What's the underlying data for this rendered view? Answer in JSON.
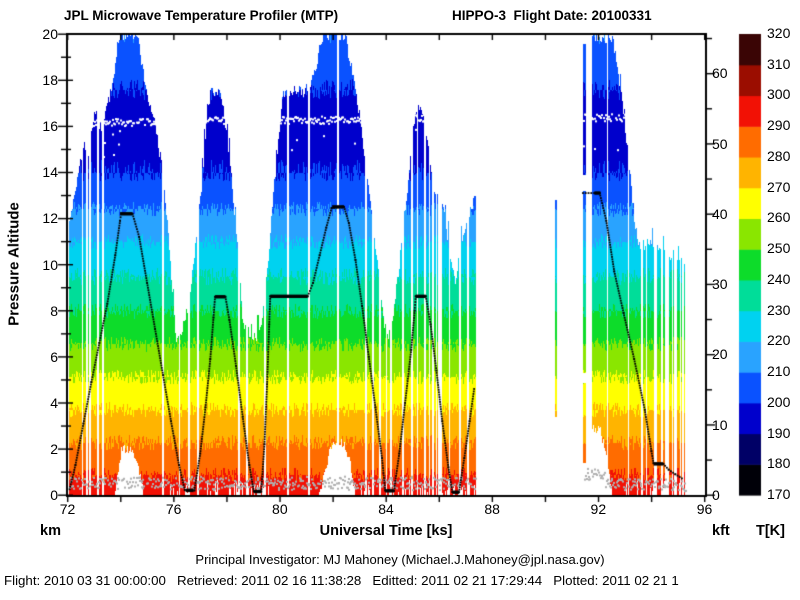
{
  "footer": {
    "line1": "Principal Investigator: MJ Mahoney (Michael.J.Mahoney@jpl.nasa.gov)",
    "line2": "Flight: 2010 03 31 00:00:00   Retrieved: 2011 02 16 11:38:28   Editted: 2011 02 21 17:29:44   Plotted: 2011 02 21 1"
  },
  "chart_data": {
    "type": "heatmap",
    "title": "JPL Microwave Temperature Profiler (MTP)",
    "title_right": "HIPPO-3  Flight Date: 20100331",
    "title_color": "#000080",
    "x_axis": {
      "label": "Universal Time [ks]",
      "range": [
        72,
        96
      ],
      "tick_labels": [
        72,
        76,
        80,
        84,
        88,
        92,
        96
      ],
      "minor_tick_step": 2
    },
    "y_axis_left": {
      "label": "Pressure Altitude",
      "unit": "km",
      "range": [
        0,
        20
      ],
      "labeled_tick_step": 2,
      "minor_tick_step": 1
    },
    "y_axis_right": {
      "unit": "kft",
      "tick_labels": [
        0,
        10,
        20,
        30,
        40,
        50,
        60
      ],
      "minor_tick_step": 5,
      "km_per_kft": 0.3048
    },
    "colorbar": {
      "unit": "T[K]",
      "min": 170,
      "max": 320,
      "label_step": 10,
      "band_colors": [
        "#000008",
        "#000066",
        "#0000cc",
        "#0a52ff",
        "#29a3ff",
        "#00d2f0",
        "#00dd99",
        "#0ddc2a",
        "#8ae600",
        "#ffff00",
        "#ffb400",
        "#ff6c00",
        "#f21105",
        "#9b0d00",
        "#3a0505"
      ]
    },
    "temperature_profile_K_by_km": [
      [
        0,
        296
      ],
      [
        0.5,
        293
      ],
      [
        1,
        289
      ],
      [
        1.5,
        286
      ],
      [
        2,
        282
      ],
      [
        3,
        275
      ],
      [
        4,
        268
      ],
      [
        5,
        261
      ],
      [
        6,
        254
      ],
      [
        7,
        247
      ],
      [
        8,
        240
      ],
      [
        9,
        233
      ],
      [
        10,
        227
      ],
      [
        11,
        220
      ],
      [
        12,
        213
      ],
      [
        13,
        206
      ],
      [
        14,
        200
      ],
      [
        15,
        196
      ],
      [
        16,
        193
      ],
      [
        16.5,
        194
      ],
      [
        17,
        197
      ],
      [
        18,
        202
      ],
      [
        19,
        206
      ],
      [
        20,
        209
      ]
    ],
    "view_clearance_km": 10.2,
    "segments": [
      {
        "envelope": [
          [
            72.05,
            11.8
          ],
          [
            72.2,
            12.8
          ],
          [
            72.35,
            13.8
          ],
          [
            72.5,
            14.6
          ],
          [
            72.62,
            15.2
          ],
          [
            72.75,
            13.8
          ],
          [
            72.9,
            15.9
          ],
          [
            73.05,
            16.7
          ],
          [
            73.2,
            16.1
          ],
          [
            73.3,
            15.9
          ],
          [
            73.45,
            16.8
          ],
          [
            73.6,
            17.4
          ],
          [
            73.75,
            18.3
          ],
          [
            73.86,
            19.6
          ],
          [
            73.95,
            20
          ],
          [
            74.62,
            20
          ],
          [
            74.8,
            18.6
          ],
          [
            75.0,
            17.4
          ],
          [
            75.25,
            16.2
          ],
          [
            75.5,
            14.6
          ],
          [
            75.65,
            13.2
          ],
          [
            75.9,
            9.5
          ],
          [
            76.08,
            6.7
          ],
          [
            76.25,
            7.0
          ],
          [
            76.45,
            7.8
          ],
          [
            76.65,
            9.2
          ],
          [
            76.85,
            11.2
          ],
          [
            77.05,
            13.6
          ],
          [
            77.25,
            16.8
          ],
          [
            77.4,
            17.5
          ],
          [
            77.7,
            17.6
          ],
          [
            77.9,
            16.4
          ],
          [
            78.1,
            14.6
          ],
          [
            78.3,
            12.0
          ],
          [
            78.45,
            10.0
          ],
          [
            78.6,
            7.4
          ],
          [
            79.0,
            6.8
          ],
          [
            79.25,
            7.2
          ],
          [
            79.45,
            9.0
          ],
          [
            79.6,
            11.0
          ],
          [
            79.8,
            13.8
          ],
          [
            80.0,
            16.2
          ],
          [
            80.1,
            17.4
          ],
          [
            80.5,
            17.6
          ],
          [
            80.9,
            17.5
          ],
          [
            81.15,
            17.9
          ],
          [
            81.35,
            18.6
          ],
          [
            81.55,
            19.7
          ],
          [
            81.65,
            20
          ],
          [
            82.45,
            20
          ],
          [
            82.6,
            19.0
          ],
          [
            82.8,
            17.8
          ],
          [
            83.0,
            16.4
          ],
          [
            83.2,
            14.6
          ],
          [
            83.45,
            12.2
          ],
          [
            83.7,
            9.6
          ],
          [
            83.9,
            7.6
          ],
          [
            84.05,
            6.9
          ],
          [
            84.25,
            7.8
          ],
          [
            84.45,
            9.6
          ],
          [
            84.65,
            11.8
          ],
          [
            84.85,
            14.0
          ],
          [
            85.0,
            15.8
          ],
          [
            85.15,
            16.9
          ],
          [
            85.35,
            16.6
          ],
          [
            85.5,
            15.6
          ],
          [
            85.65,
            14.4
          ],
          [
            85.82,
            13.2
          ],
          [
            85.95,
            12.7
          ],
          [
            86.1,
            12.6
          ],
          [
            86.3,
            11.3
          ],
          [
            86.5,
            9.6
          ],
          [
            86.6,
            9.4
          ],
          [
            86.75,
            10.3
          ],
          [
            86.9,
            11.4
          ],
          [
            87.1,
            12.2
          ],
          [
            87.25,
            12.7
          ],
          [
            87.38,
            13.0
          ]
        ],
        "aircraft_track": [
          [
            72.08,
            0.25
          ],
          [
            72.3,
            1.3
          ],
          [
            72.6,
            3.1
          ],
          [
            72.9,
            4.9
          ],
          [
            73.2,
            6.6
          ],
          [
            73.5,
            8.3
          ],
          [
            73.8,
            10.4
          ],
          [
            73.98,
            11.9
          ],
          [
            74.02,
            12.2
          ],
          [
            74.45,
            12.2
          ],
          [
            74.7,
            11.2
          ],
          [
            75.0,
            9.2
          ],
          [
            75.3,
            7.2
          ],
          [
            75.6,
            5.2
          ],
          [
            75.9,
            3.2
          ],
          [
            76.2,
            1.3
          ],
          [
            76.42,
            0.22
          ],
          [
            76.78,
            0.2
          ],
          [
            77.0,
            1.8
          ],
          [
            77.2,
            3.8
          ],
          [
            77.38,
            5.9
          ],
          [
            77.5,
            7.7
          ],
          [
            77.56,
            8.6
          ],
          [
            77.95,
            8.6
          ],
          [
            78.1,
            7.6
          ],
          [
            78.35,
            5.6
          ],
          [
            78.6,
            3.4
          ],
          [
            78.85,
            1.3
          ],
          [
            79.02,
            0.16
          ],
          [
            79.3,
            0.15
          ],
          [
            79.42,
            2.2
          ],
          [
            79.52,
            4.8
          ],
          [
            79.6,
            7.4
          ],
          [
            79.64,
            8.62
          ],
          [
            81.05,
            8.62
          ],
          [
            81.25,
            9.2
          ],
          [
            81.5,
            10.4
          ],
          [
            81.75,
            11.6
          ],
          [
            81.95,
            12.45
          ],
          [
            82.42,
            12.5
          ],
          [
            82.6,
            11.8
          ],
          [
            82.85,
            10.2
          ],
          [
            83.1,
            8.2
          ],
          [
            83.35,
            6.0
          ],
          [
            83.6,
            3.8
          ],
          [
            83.85,
            1.6
          ],
          [
            83.97,
            0.2
          ],
          [
            84.3,
            0.18
          ],
          [
            84.5,
            1.8
          ],
          [
            84.72,
            4.0
          ],
          [
            84.95,
            6.3
          ],
          [
            85.08,
            8.0
          ],
          [
            85.12,
            8.62
          ],
          [
            85.5,
            8.62
          ],
          [
            85.68,
            7.4
          ],
          [
            85.9,
            5.4
          ],
          [
            86.12,
            3.2
          ],
          [
            86.35,
            1.2
          ],
          [
            86.5,
            0.13
          ],
          [
            86.75,
            0.12
          ],
          [
            86.95,
            1.6
          ],
          [
            87.15,
            3.2
          ],
          [
            87.32,
            4.6
          ]
        ]
      },
      {
        "envelope": [
          [
            91.75,
            19.8
          ],
          [
            92.5,
            19.9
          ],
          [
            92.62,
            19.2
          ],
          [
            92.78,
            18.0
          ],
          [
            92.92,
            16.6
          ],
          [
            93.08,
            15.0
          ],
          [
            93.22,
            13.4
          ],
          [
            93.35,
            12.0
          ],
          [
            93.45,
            11.1
          ],
          [
            93.55,
            10.8
          ],
          [
            93.9,
            10.9
          ],
          [
            94.2,
            10.7
          ],
          [
            94.5,
            10.5
          ],
          [
            94.8,
            10.4
          ],
          [
            95.1,
            10.3
          ],
          [
            95.25,
            10.1
          ]
        ],
        "aircraft_track": [
          [
            91.42,
            13.1
          ],
          [
            92.05,
            13.1
          ],
          [
            92.3,
            11.9
          ],
          [
            92.6,
            9.7
          ],
          [
            92.95,
            7.9
          ],
          [
            93.35,
            5.9
          ],
          [
            93.75,
            3.7
          ],
          [
            94.0,
            1.9
          ],
          [
            94.08,
            1.38
          ],
          [
            94.45,
            1.35
          ],
          [
            94.65,
            1.1
          ],
          [
            94.9,
            0.9
          ],
          [
            95.15,
            0.72
          ]
        ]
      }
    ],
    "aircraft_level_flats": [
      [
        73.98,
        74.45,
        12.2
      ],
      [
        76.45,
        76.75,
        0.2
      ],
      [
        77.56,
        77.95,
        8.6
      ],
      [
        79.02,
        79.3,
        0.15
      ],
      [
        79.64,
        81.05,
        8.62
      ],
      [
        81.97,
        82.42,
        12.5
      ],
      [
        83.97,
        84.3,
        0.18
      ],
      [
        85.12,
        85.5,
        8.62
      ],
      [
        86.5,
        86.75,
        0.12
      ],
      [
        91.85,
        92.08,
        13.1
      ],
      [
        94.08,
        94.45,
        1.35
      ]
    ],
    "isolated_stripes": [
      {
        "t0": 90.33,
        "t1": 90.42,
        "z0": 3.4,
        "z1": 12.8,
        "breaks": []
      },
      {
        "t0": 91.42,
        "t1": 91.53,
        "z0": 1.4,
        "z1": 19.6,
        "breaks": [
          [
            13.2,
            13.9
          ],
          [
            4.9,
            5.3
          ]
        ]
      }
    ],
    "column_gaps": [
      [
        72.55,
        0.03
      ],
      [
        72.72,
        0.03
      ],
      [
        72.82,
        0.03
      ],
      [
        73.12,
        0.03
      ],
      [
        73.32,
        0.04
      ],
      [
        75.58,
        0.04
      ],
      [
        76.2,
        0.03
      ],
      [
        76.55,
        0.03
      ],
      [
        76.9,
        0.03
      ],
      [
        78.45,
        0.03
      ],
      [
        78.75,
        0.03
      ],
      [
        79.42,
        0.03
      ],
      [
        80.3,
        0.03
      ],
      [
        81.08,
        0.04
      ],
      [
        82.18,
        0.03
      ],
      [
        83.22,
        0.03
      ],
      [
        83.5,
        0.03
      ],
      [
        83.76,
        0.03
      ],
      [
        84.0,
        0.03
      ],
      [
        84.16,
        0.03
      ],
      [
        84.62,
        0.03
      ],
      [
        84.96,
        0.03
      ],
      [
        85.17,
        0.03
      ],
      [
        85.45,
        0.03
      ],
      [
        85.62,
        0.03
      ],
      [
        85.75,
        0.03
      ],
      [
        85.88,
        0.03
      ],
      [
        86.02,
        0.07
      ],
      [
        86.38,
        0.03
      ],
      [
        86.78,
        0.03
      ],
      [
        87.08,
        0.03
      ],
      [
        92.32,
        0.03
      ],
      [
        93.12,
        0.03
      ],
      [
        93.62,
        0.03
      ],
      [
        93.8,
        0.03
      ],
      [
        94.14,
        0.07
      ],
      [
        94.38,
        0.03
      ],
      [
        94.56,
        0.07
      ],
      [
        94.78,
        0.03
      ],
      [
        94.9,
        0.06
      ],
      [
        95.08,
        0.03
      ],
      [
        95.18,
        0.03
      ]
    ],
    "ragged_bottom_ranges": [
      [
        75.7,
        79.6
      ],
      [
        82.7,
        87.4
      ],
      [
        92.9,
        95.3
      ]
    ],
    "tropopause_trace": {
      "color": "#ffffff",
      "ranges": [
        [
          72.95,
          75.35,
          16.2
        ],
        [
          77.18,
          77.98,
          16.3
        ],
        [
          79.9,
          83.1,
          16.3
        ],
        [
          84.95,
          85.5,
          16.4
        ],
        [
          91.42,
          93.0,
          16.4
        ]
      ],
      "outlier_cluster": [
        73.25,
        73.95
      ]
    },
    "surface_trace": {
      "color": "#b0b0b0",
      "ranges": [
        [
          72.05,
          87.38,
          0.55
        ],
        [
          91.45,
          92.25,
          0.9
        ],
        [
          92.25,
          95.3,
          0.5
        ]
      ]
    },
    "track_color": "#000000"
  }
}
